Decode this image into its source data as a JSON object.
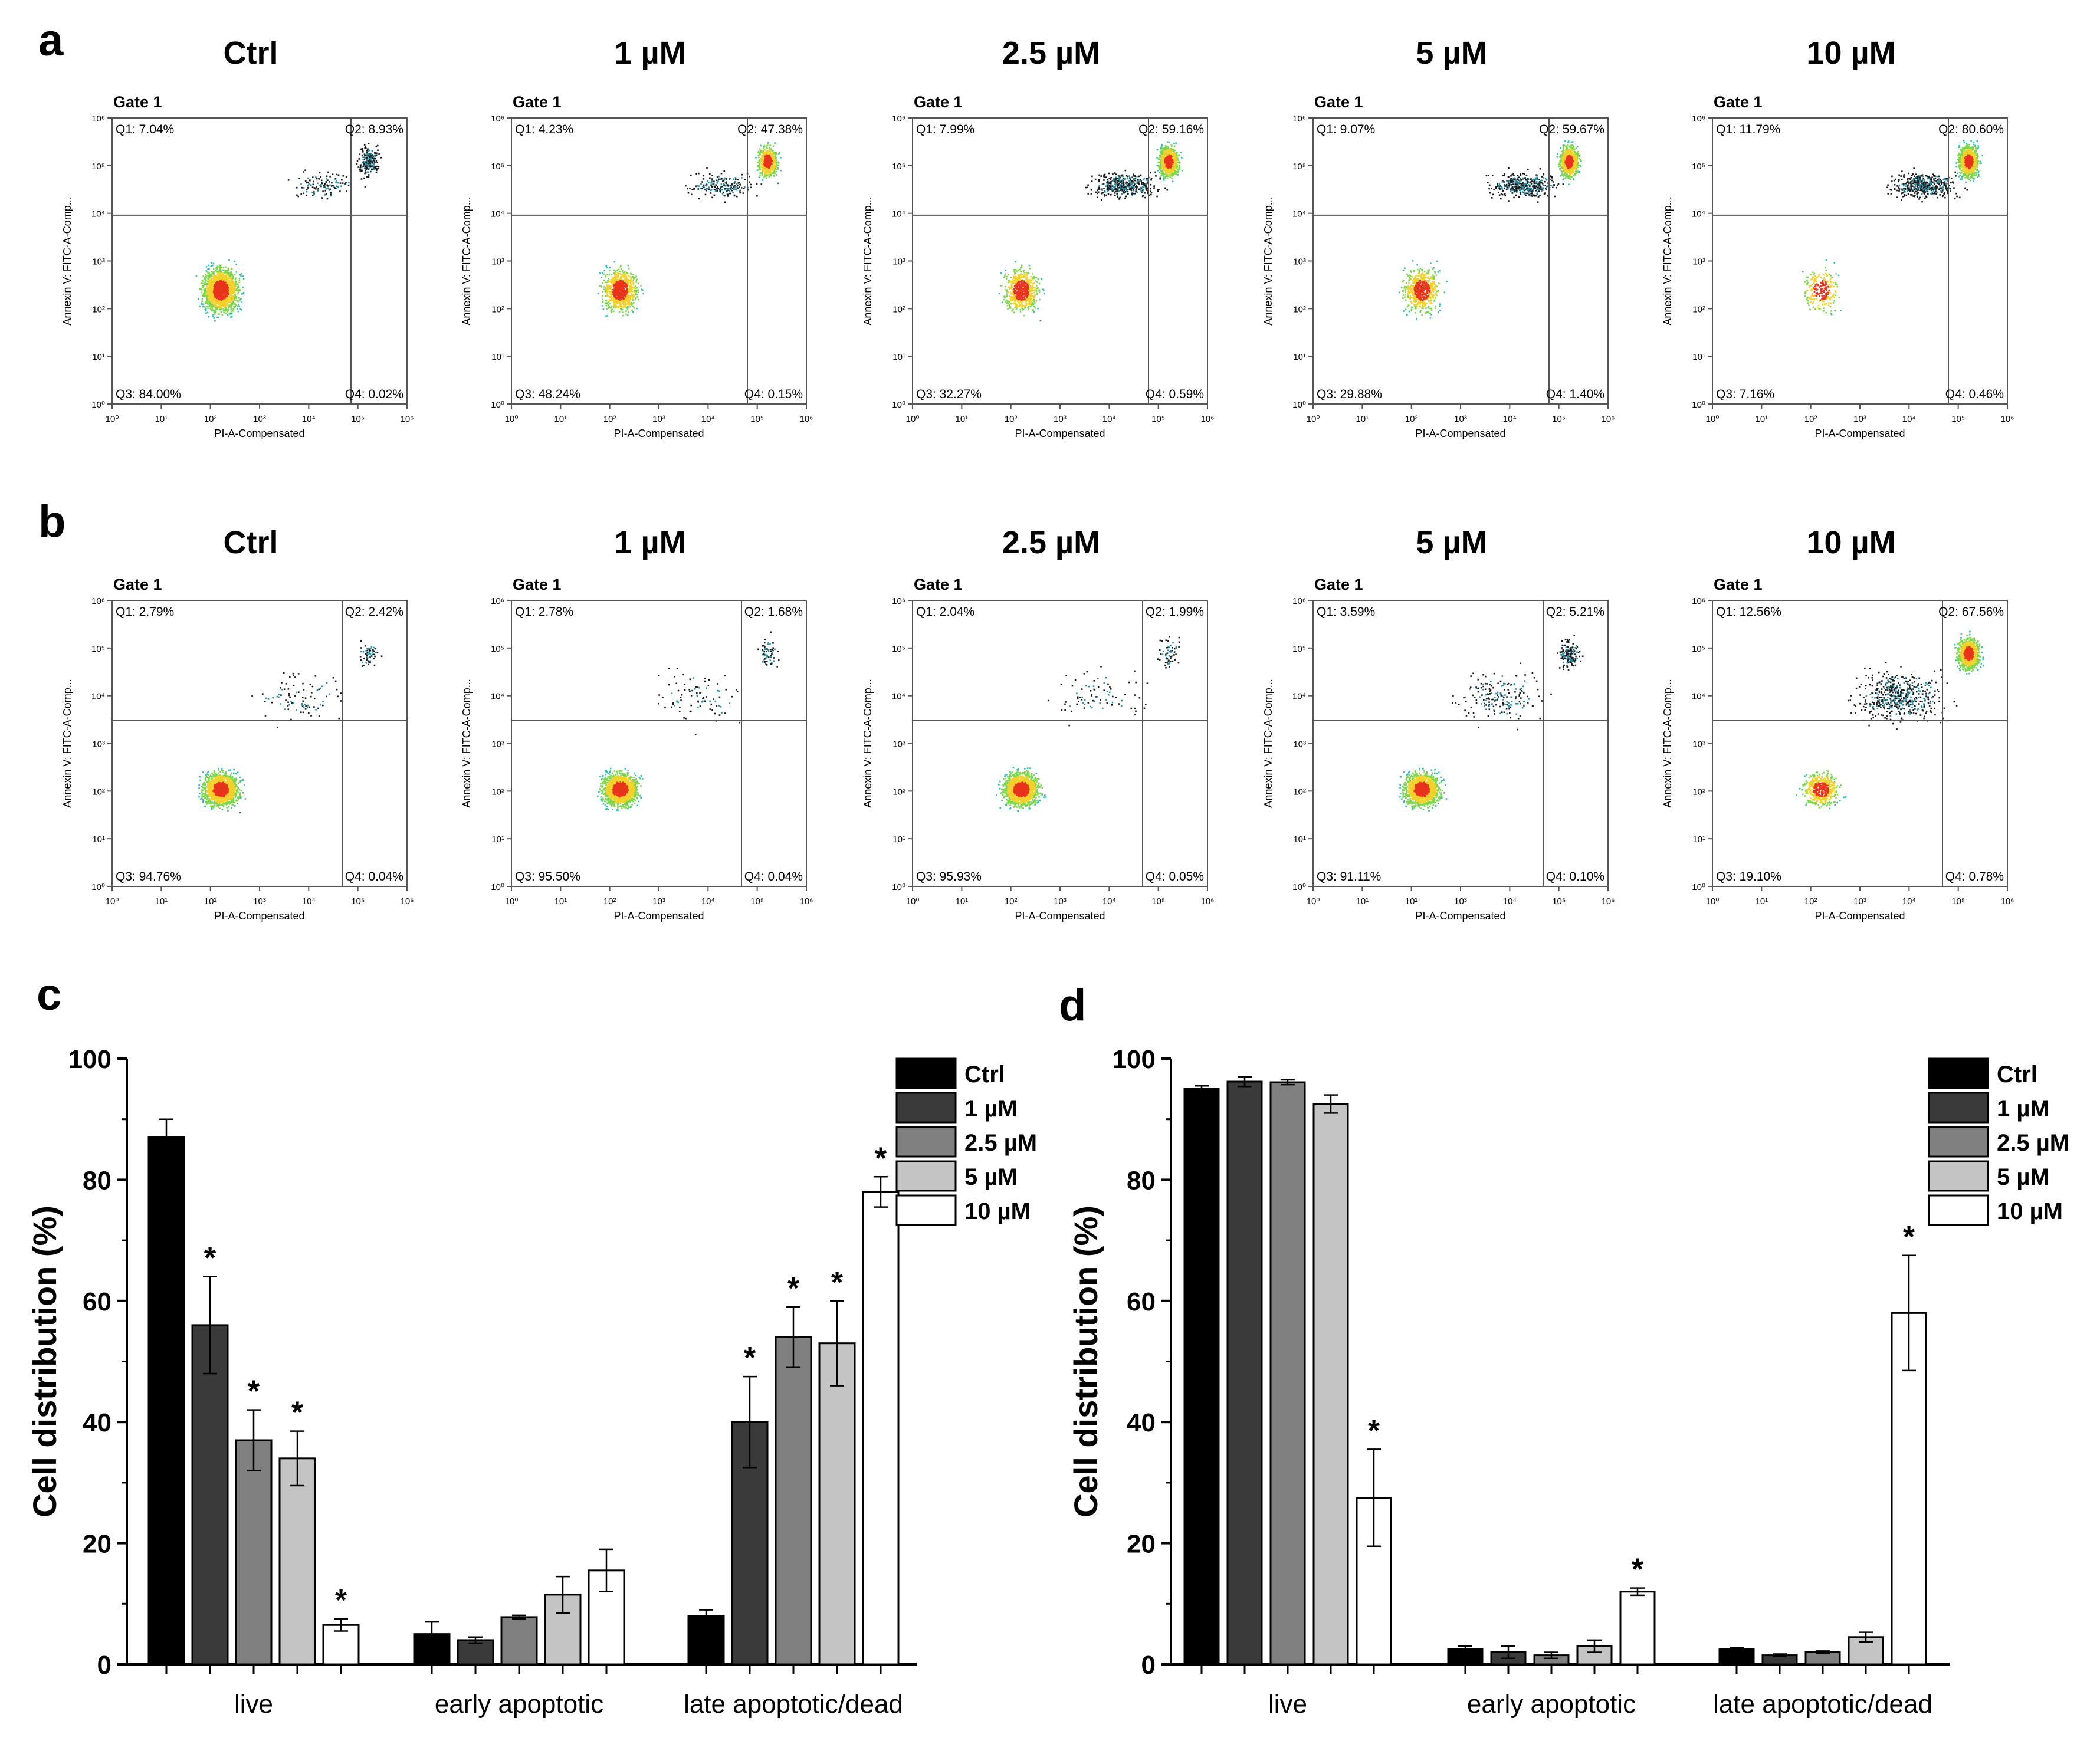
{
  "panels": {
    "a": "a",
    "b": "b",
    "c": "c",
    "d": "d"
  },
  "concentrations": [
    "Ctrl",
    "1 µM",
    "2.5 µM",
    "5 µM",
    "10 µM"
  ],
  "flow": {
    "gate_label": "Gate 1",
    "x_axis_label": "PI-A-Compensated",
    "y_axis_label": "Annexin V: FITC-A-Comp...",
    "tick_labels": [
      "10⁰",
      "10¹",
      "10²",
      "10³",
      "10⁴",
      "10⁵",
      "10⁶"
    ],
    "rows": [
      {
        "plots": [
          {
            "q1": "Q1: 7.04%",
            "q2": "Q2: 8.93%",
            "q3": "Q3: 84.00%",
            "q4": "Q4: 0.02%"
          },
          {
            "q1": "Q1: 4.23%",
            "q2": "Q2: 47.38%",
            "q3": "Q3: 48.24%",
            "q4": "Q4: 0.15%"
          },
          {
            "q1": "Q1: 7.99%",
            "q2": "Q2: 59.16%",
            "q3": "Q3: 32.27%",
            "q4": "Q4: 0.59%"
          },
          {
            "q1": "Q1: 9.07%",
            "q2": "Q2: 59.67%",
            "q3": "Q3: 29.88%",
            "q4": "Q4: 1.40%"
          },
          {
            "q1": "Q1: 11.79%",
            "q2": "Q2: 80.60%",
            "q3": "Q3: 7.16%",
            "q4": "Q4: 0.46%"
          }
        ]
      },
      {
        "plots": [
          {
            "q1": "Q1: 2.79%",
            "q2": "Q2: 2.42%",
            "q3": "Q3: 94.76%",
            "q4": "Q4: 0.04%"
          },
          {
            "q1": "Q1: 2.78%",
            "q2": "Q2: 1.68%",
            "q3": "Q3: 95.50%",
            "q4": "Q4: 0.04%"
          },
          {
            "q1": "Q1: 2.04%",
            "q2": "Q2: 1.99%",
            "q3": "Q3: 95.93%",
            "q4": "Q4: 0.05%"
          },
          {
            "q1": "Q1: 3.59%",
            "q2": "Q2: 5.21%",
            "q3": "Q3: 91.11%",
            "q4": "Q4: 0.10%"
          },
          {
            "q1": "Q1: 12.56%",
            "q2": "Q2: 67.56%",
            "q3": "Q3: 19.10%",
            "q4": "Q4: 0.78%"
          }
        ]
      }
    ]
  },
  "chart_data": [
    {
      "id": "c",
      "type": "bar",
      "title": "",
      "xlabel": "",
      "ylabel": "Cell distribution (%)",
      "ylim": [
        0,
        100
      ],
      "yticks": [
        "0",
        "20",
        "40",
        "60",
        "80",
        "100"
      ],
      "categories": [
        "live",
        "early apoptotic",
        "late apoptotic/dead"
      ],
      "legend": {
        "position": "top-right"
      },
      "series": [
        {
          "name": "Ctrl",
          "color": "#000000",
          "values": [
            87,
            5,
            8
          ],
          "errors": [
            3,
            2,
            1
          ],
          "significant": [
            false,
            false,
            false
          ]
        },
        {
          "name": "1 µM",
          "color": "#3a3a3a",
          "values": [
            56,
            4,
            40
          ],
          "errors": [
            8,
            0.5,
            7.5
          ],
          "significant": [
            true,
            false,
            true
          ]
        },
        {
          "name": "2.5 µM",
          "color": "#808080",
          "values": [
            37,
            7.8,
            54
          ],
          "errors": [
            5,
            0.3,
            5
          ],
          "significant": [
            true,
            false,
            true
          ]
        },
        {
          "name": "5 µM",
          "color": "#c4c4c4",
          "values": [
            34,
            11.5,
            53
          ],
          "errors": [
            4.5,
            3,
            7
          ],
          "significant": [
            true,
            false,
            true
          ]
        },
        {
          "name": "10 µM",
          "color": "#ffffff",
          "values": [
            6.5,
            15.5,
            78
          ],
          "errors": [
            1,
            3.5,
            2.5
          ],
          "significant": [
            true,
            false,
            true
          ]
        }
      ]
    },
    {
      "id": "d",
      "type": "bar",
      "title": "",
      "xlabel": "",
      "ylabel": "Cell distribution (%)",
      "ylim": [
        0,
        100
      ],
      "yticks": [
        "0",
        "20",
        "40",
        "60",
        "80",
        "100"
      ],
      "categories": [
        "live",
        "early apoptotic",
        "late apoptotic/dead"
      ],
      "legend": {
        "position": "top-right"
      },
      "series": [
        {
          "name": "Ctrl",
          "color": "#000000",
          "values": [
            95,
            2.5,
            2.5
          ],
          "errors": [
            0.5,
            0.5,
            0.2
          ],
          "significant": [
            false,
            false,
            false
          ]
        },
        {
          "name": "1 µM",
          "color": "#3a3a3a",
          "values": [
            96.2,
            2,
            1.5
          ],
          "errors": [
            0.8,
            1,
            0.2
          ],
          "significant": [
            false,
            false,
            false
          ]
        },
        {
          "name": "2.5 µM",
          "color": "#808080",
          "values": [
            96.1,
            1.5,
            2
          ],
          "errors": [
            0.4,
            0.5,
            0.2
          ],
          "significant": [
            false,
            false,
            false
          ]
        },
        {
          "name": "5 µM",
          "color": "#c4c4c4",
          "values": [
            92.5,
            3,
            4.5
          ],
          "errors": [
            1.5,
            1,
            0.8
          ],
          "significant": [
            false,
            false,
            false
          ]
        },
        {
          "name": "10 µM",
          "color": "#ffffff",
          "values": [
            27.5,
            12,
            58
          ],
          "errors": [
            8,
            0.6,
            9.5
          ],
          "significant": [
            true,
            true,
            true
          ]
        }
      ]
    }
  ],
  "significance_marker": "*"
}
